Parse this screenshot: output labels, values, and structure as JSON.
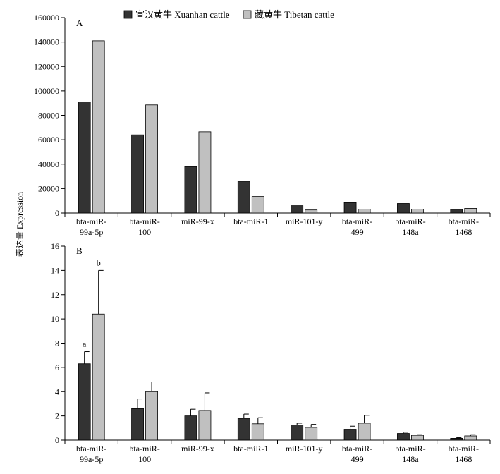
{
  "legend": {
    "xuanhan": "宣汉黄牛 Xuanhan cattle",
    "tibetan": "藏黄牛 Tibetan cattle"
  },
  "colors": {
    "xuanhan": "#333333",
    "tibetan": "#c0c0c0"
  },
  "ylabel": "表达量 Expression",
  "chart_data": [
    {
      "type": "bar",
      "panel": "A",
      "categories": [
        [
          "bta-miR-",
          "99a-5p"
        ],
        [
          "bta-miR-",
          "100"
        ],
        [
          "miR-99-x",
          ""
        ],
        [
          "bta-miR-1",
          ""
        ],
        [
          "miR-101-y",
          ""
        ],
        [
          "bta-miR-",
          "499"
        ],
        [
          "bta-miR-",
          "148a"
        ],
        [
          "bta-miR-",
          "1468"
        ]
      ],
      "series": [
        {
          "name": "宣汉黄牛 Xuanhan cattle",
          "values": [
            91000,
            64000,
            38000,
            26000,
            6000,
            8500,
            7800,
            3000
          ]
        },
        {
          "name": "藏黄牛 Tibetan cattle",
          "values": [
            141000,
            88500,
            66500,
            13500,
            2500,
            3200,
            3200,
            3800
          ]
        }
      ],
      "ylim": [
        0,
        160000
      ],
      "yticks": [
        "0",
        "20000",
        "40000",
        "60000",
        "80000",
        "100000",
        "120000",
        "140000",
        "160000"
      ],
      "ylabel": "表达量 Expression"
    },
    {
      "type": "bar",
      "panel": "B",
      "categories": [
        [
          "bta-miR-",
          "99a-5p"
        ],
        [
          "bta-miR-",
          "100"
        ],
        [
          "miR-99-x",
          ""
        ],
        [
          "bta-miR-1",
          ""
        ],
        [
          "miR-101-y",
          ""
        ],
        [
          "bta-miR-",
          "499"
        ],
        [
          "bta-miR-",
          "148a"
        ],
        [
          "bta-miR-",
          "1468"
        ]
      ],
      "series": [
        {
          "name": "宣汉黄牛 Xuanhan cattle",
          "values": [
            6.3,
            2.6,
            2.0,
            1.8,
            1.25,
            0.9,
            0.55,
            0.15
          ],
          "errors": [
            1.0,
            0.8,
            0.55,
            0.35,
            0.15,
            0.25,
            0.1,
            0.05
          ]
        },
        {
          "name": "藏黄牛 Tibetan cattle",
          "values": [
            10.4,
            4.0,
            2.45,
            1.35,
            1.05,
            1.4,
            0.4,
            0.35
          ],
          "errors": [
            3.6,
            0.8,
            1.45,
            0.5,
            0.25,
            0.65,
            0.05,
            0.1
          ]
        }
      ],
      "annotations": [
        {
          "category": 0,
          "series": 0,
          "text": "a"
        },
        {
          "category": 0,
          "series": 1,
          "text": "b"
        }
      ],
      "ylim": [
        0,
        16
      ],
      "yticks": [
        "0",
        "2",
        "4",
        "6",
        "8",
        "10",
        "12",
        "14",
        "16"
      ],
      "ylabel": "表达量 Expression"
    }
  ]
}
